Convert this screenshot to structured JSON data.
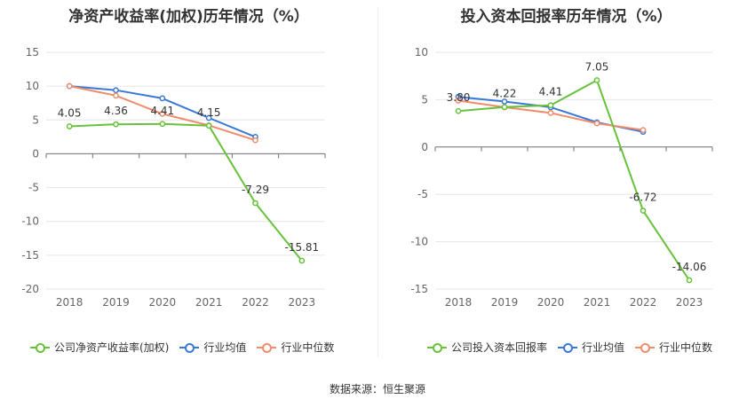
{
  "source_text": "数据来源：恒生聚源",
  "chart_data": [
    {
      "type": "line",
      "title": "净资产收益率(加权)历年情况（%）",
      "xlabel": "",
      "ylabel": "",
      "categories": [
        "2018",
        "2019",
        "2020",
        "2021",
        "2022",
        "2023"
      ],
      "ylim": [
        -20,
        15
      ],
      "yticks": [
        "15",
        "10",
        "5",
        "0",
        "-5",
        "-10",
        "-15",
        "-20"
      ],
      "grid": true,
      "legend_position": "bottom",
      "series": [
        {
          "name": "公司净资产收益率(加权)",
          "color": "#67c23a",
          "values": [
            4.05,
            4.36,
            4.41,
            4.15,
            -7.29,
            -15.81
          ],
          "labels": [
            "4.05",
            "4.36",
            "4.41",
            "4.15",
            "-7.29",
            "-15.81"
          ]
        },
        {
          "name": "行业均值",
          "color": "#3a78d8",
          "values": [
            10.0,
            9.4,
            8.2,
            5.3,
            2.5,
            null
          ]
        },
        {
          "name": "行业中位数",
          "color": "#f08b6b",
          "values": [
            10.0,
            8.6,
            5.9,
            4.2,
            2.0,
            null
          ]
        }
      ]
    },
    {
      "type": "line",
      "title": "投入资本回报率历年情况（%）",
      "xlabel": "",
      "ylabel": "",
      "categories": [
        "2018",
        "2019",
        "2020",
        "2021",
        "2022",
        "2023"
      ],
      "ylim": [
        -15,
        10
      ],
      "yticks": [
        "10",
        "5",
        "0",
        "-5",
        "-10",
        "-15"
      ],
      "grid": true,
      "legend_position": "bottom",
      "series": [
        {
          "name": "公司投入资本回报率",
          "color": "#67c23a",
          "values": [
            3.8,
            4.22,
            4.41,
            7.05,
            -6.72,
            -14.06
          ],
          "labels": [
            "3.80",
            "4.22",
            "4.41",
            "7.05",
            "-6.72",
            "-14.06"
          ]
        },
        {
          "name": "行业均值",
          "color": "#3a78d8",
          "values": [
            5.3,
            4.8,
            4.2,
            2.6,
            1.6,
            null
          ]
        },
        {
          "name": "行业中位数",
          "color": "#f08b6b",
          "values": [
            4.9,
            4.2,
            3.6,
            2.5,
            1.8,
            null
          ]
        }
      ]
    }
  ]
}
